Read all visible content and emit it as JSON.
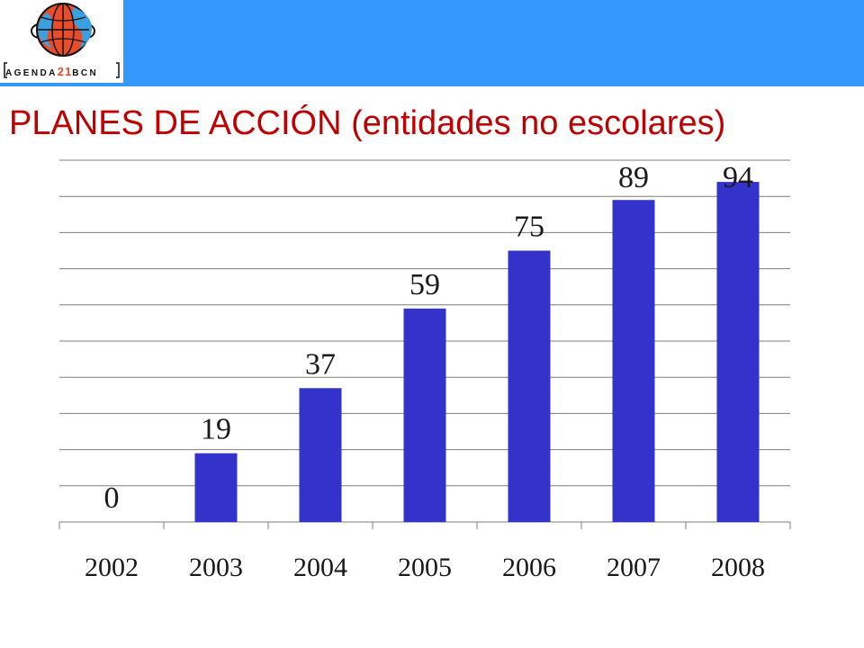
{
  "colors": {
    "header": "#3399ff",
    "title": "#c00000",
    "bar": "#3333cc",
    "grid": "#7f7f7f"
  },
  "logo": {
    "prefix": "AGENDA",
    "number": "21",
    "suffix": "BCN",
    "icon": "globe-logo-icon"
  },
  "title": "PLANES DE  ACCIÓN (entidades no escolares)",
  "chart_data": {
    "type": "bar",
    "categories": [
      "2002",
      "2003",
      "2004",
      "2005",
      "2006",
      "2007",
      "2008"
    ],
    "values": [
      0,
      19,
      37,
      59,
      75,
      89,
      94
    ],
    "data_labels": [
      "0",
      "19",
      "37",
      "59",
      "75",
      "89",
      "94"
    ],
    "title": "",
    "xlabel": "",
    "ylabel": "",
    "ylim": [
      0,
      100
    ],
    "grid": true,
    "legend": "none"
  }
}
